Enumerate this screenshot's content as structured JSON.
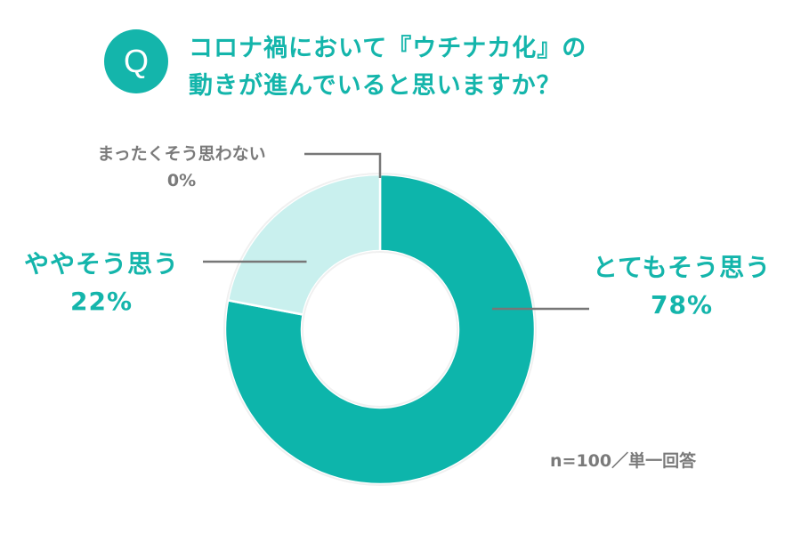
{
  "question": {
    "badge": "Q",
    "line1": "コロナ禍において『ウチナカ化』の",
    "line2": "動きが進んでいると思いますか？"
  },
  "chart_data": {
    "type": "pie",
    "donut": true,
    "unit": "%",
    "slices": [
      {
        "label": "まったくそう思わない",
        "value": 0,
        "pct_text": "0%",
        "color": "#a8dcd8",
        "label_color": "#7a7a7a"
      },
      {
        "label": "ややそう思う",
        "value": 22,
        "pct_text": "22%",
        "color": "#c9f0ee",
        "label_color": "#14b5ab"
      },
      {
        "label": "とてもそう思う",
        "value": 78,
        "pct_text": "78%",
        "color": "#0db5ab",
        "label_color": "#14b5ab"
      }
    ],
    "slice_order": "clockwise from top, last slice first",
    "leader_line_color": "#777777"
  },
  "note": "n=100／単一回答"
}
